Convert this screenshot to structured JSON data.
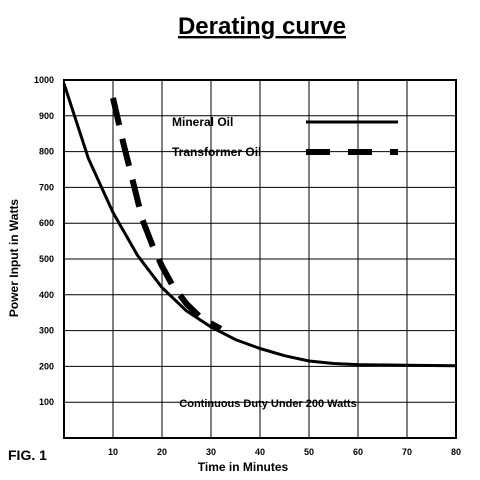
{
  "chart_data": {
    "type": "line",
    "title": "Derating curve",
    "xlabel": "Time in Minutes",
    "ylabel": "Power Input in Watts",
    "xlim": [
      0,
      80
    ],
    "ylim": [
      0,
      1000
    ],
    "x_ticks": [
      "10",
      "20",
      "30",
      "40",
      "50",
      "60",
      "70",
      "80"
    ],
    "y_ticks": [
      "100",
      "200",
      "300",
      "400",
      "500",
      "600",
      "700",
      "800",
      "900",
      "1000"
    ],
    "grid": true,
    "legend_position": "top-right",
    "series": [
      {
        "name": "Mineral Oil",
        "style": "solid",
        "points": [
          [
            0,
            990
          ],
          [
            5,
            780
          ],
          [
            10,
            630
          ],
          [
            15,
            510
          ],
          [
            20,
            420
          ],
          [
            25,
            355
          ],
          [
            30,
            310
          ],
          [
            35,
            275
          ],
          [
            40,
            250
          ],
          [
            45,
            230
          ],
          [
            50,
            215
          ],
          [
            55,
            208
          ],
          [
            60,
            205
          ],
          [
            70,
            203
          ],
          [
            80,
            202
          ]
        ]
      },
      {
        "name": "Transformer Oil",
        "style": "dashed",
        "points": [
          [
            10,
            950
          ],
          [
            12,
            830
          ],
          [
            14,
            720
          ],
          [
            16,
            610
          ],
          [
            18,
            540
          ],
          [
            20,
            480
          ],
          [
            22,
            430
          ],
          [
            25,
            375
          ],
          [
            28,
            335
          ],
          [
            32,
            305
          ]
        ]
      }
    ],
    "annotation": "Continuous Duty Under 200 Watts"
  },
  "figure_label": "FIG. 1",
  "colors": {
    "line": "#000000",
    "background": "#ffffff"
  }
}
